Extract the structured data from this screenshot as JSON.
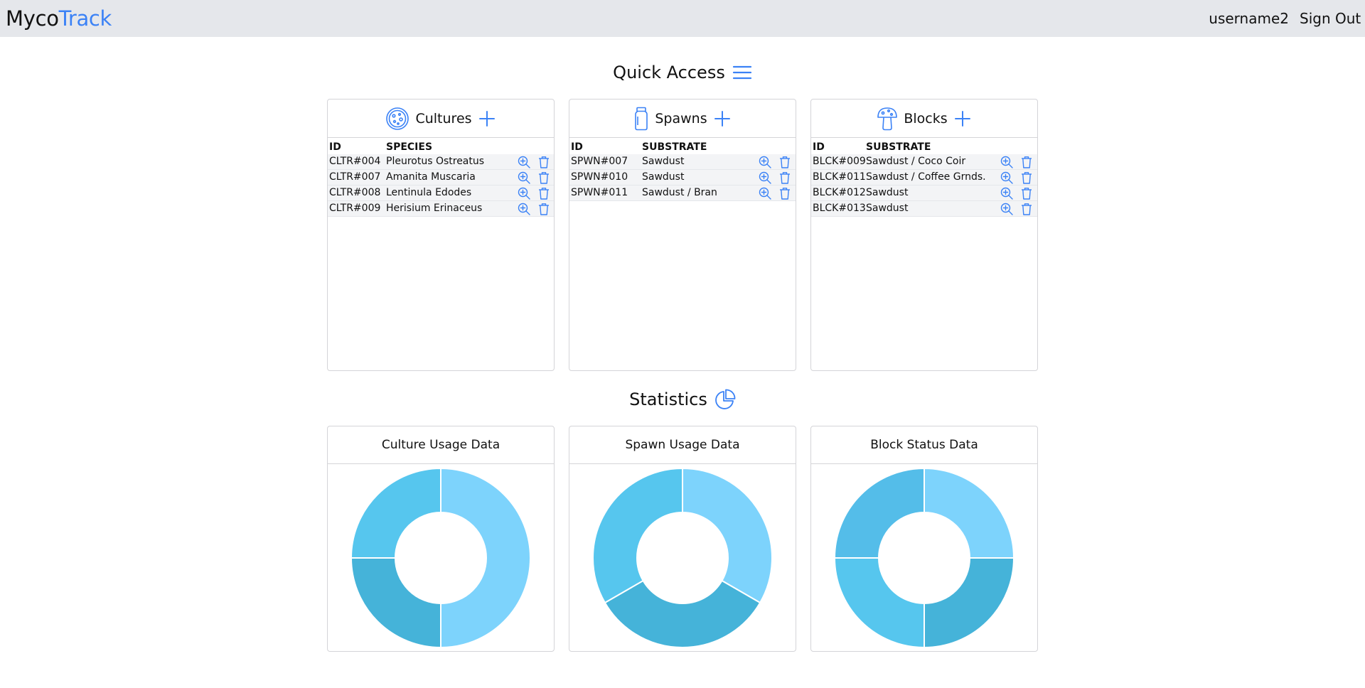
{
  "nav": {
    "brand_part1": "Myco",
    "brand_part2": "Track",
    "username": "username2",
    "sign_out": "Sign Out"
  },
  "quick_access": {
    "title": "Quick Access",
    "cards": [
      {
        "title": "Cultures",
        "col1": "ID",
        "col2": "SPECIES",
        "rows": [
          {
            "id": "CLTR#004",
            "value": "Pleurotus Ostreatus"
          },
          {
            "id": "CLTR#007",
            "value": "Amanita Muscaria"
          },
          {
            "id": "CLTR#008",
            "value": "Lentinula Edodes"
          },
          {
            "id": "CLTR#009",
            "value": "Herisium Erinaceus"
          }
        ]
      },
      {
        "title": "Spawns",
        "col1": "ID",
        "col2": "SUBSTRATE",
        "rows": [
          {
            "id": "SPWN#007",
            "value": "Sawdust"
          },
          {
            "id": "SPWN#010",
            "value": "Sawdust"
          },
          {
            "id": "SPWN#011",
            "value": "Sawdust / Bran"
          }
        ]
      },
      {
        "title": "Blocks",
        "col1": "ID",
        "col2": "SUBSTRATE",
        "rows": [
          {
            "id": "BLCK#009",
            "value": "Sawdust / Coco Coir"
          },
          {
            "id": "BLCK#011",
            "value": "Sawdust / Coffee Grnds."
          },
          {
            "id": "BLCK#012",
            "value": "Sawdust"
          },
          {
            "id": "BLCK#013",
            "value": "Sawdust"
          }
        ]
      }
    ]
  },
  "statistics": {
    "title": "Statistics",
    "charts": [
      {
        "title": "Culture Usage Data"
      },
      {
        "title": "Spawn Usage Data"
      },
      {
        "title": "Block Status Data"
      }
    ]
  },
  "chart_data": [
    {
      "type": "pie",
      "values": [
        50,
        25,
        25
      ],
      "colors": [
        "#7dd3fc",
        "#45b3d9",
        "#56c6ee"
      ]
    },
    {
      "type": "pie",
      "values": [
        33.33,
        33.33,
        33.34
      ],
      "colors": [
        "#7dd3fc",
        "#45b3d9",
        "#56c6ee"
      ]
    },
    {
      "type": "pie",
      "values": [
        25,
        25,
        25,
        25
      ],
      "colors": [
        "#7dd3fc",
        "#45b3d9",
        "#56c6ee",
        "#54bde9"
      ]
    }
  ],
  "colors": {
    "accent": "#3b82f6",
    "navbar_bg": "#e5e7eb",
    "row_bg": "#f3f4f6"
  }
}
